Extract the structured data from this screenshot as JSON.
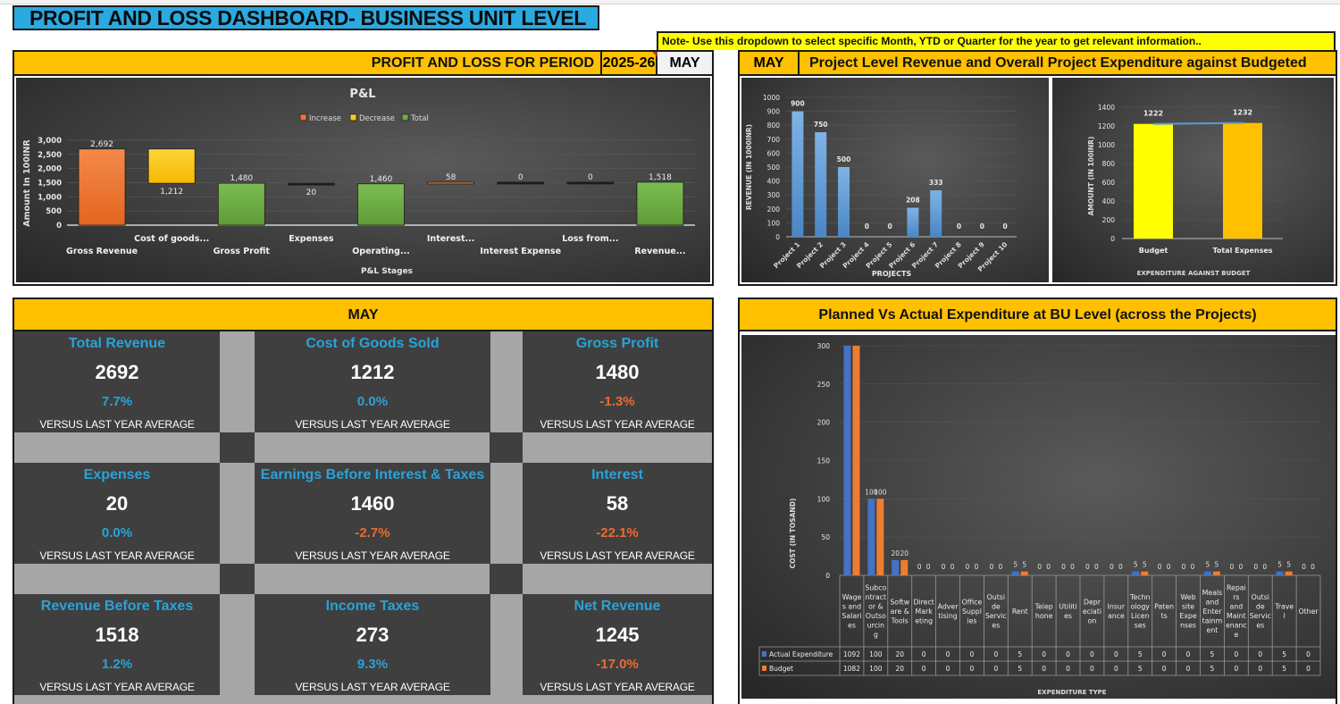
{
  "title": "PROFIT AND LOSS DASHBOARD- BUSINESS UNIT LEVEL",
  "note": "Note- Use this dropdown to select specific Month, YTD or Quarter for the year to get relevant information..",
  "pl_section": {
    "header_label": "PROFIT AND LOSS FOR PERIOD",
    "fiscal_year": "2025-26",
    "period_dropdown": "MAY"
  },
  "project_section": {
    "period": "MAY",
    "header_label": "Project Level Revenue and  Overall Project Expenditure against Budgeted"
  },
  "kpi_section": {
    "header": "MAY",
    "subtitle": "VERSUS LAST YEAR AVERAGE",
    "cards": [
      {
        "title": "Total Revenue",
        "value": "2692",
        "change": "7.7%",
        "trend": "pos"
      },
      {
        "title": "Cost of Goods Sold",
        "value": "1212",
        "change": "0.0%",
        "trend": "pos"
      },
      {
        "title": "Gross Profit",
        "value": "1480",
        "change": "-1.3%",
        "trend": "neg"
      },
      {
        "title": "Expenses",
        "value": "20",
        "change": "0.0%",
        "trend": "pos"
      },
      {
        "title": "Earnings Before Interest & Taxes",
        "value": "1460",
        "change": "-2.7%",
        "trend": "neg"
      },
      {
        "title": "Interest",
        "value": "58",
        "change": "-22.1%",
        "trend": "neg"
      },
      {
        "title": "Revenue Before Taxes",
        "value": "1518",
        "change": "1.2%",
        "trend": "pos"
      },
      {
        "title": "Income Taxes",
        "value": "273",
        "change": "9.3%",
        "trend": "pos"
      },
      {
        "title": "Net Revenue",
        "value": "1245",
        "change": "-17.0%",
        "trend": "neg"
      }
    ]
  },
  "expenditure_section": {
    "header": "Planned Vs Actual Expenditure at BU Level (across the Projects)"
  },
  "colors": {
    "increase": "#ed7d31",
    "decrease": "#ffc000",
    "total": "#70ad47",
    "project_bar": "#5b9bd5",
    "budget_bar": "#ffff00",
    "expense_bar": "#ffc000",
    "actual": "#4472c4",
    "budget": "#ed7d31",
    "positive": "#29a3d8",
    "negative": "#ee6a2f"
  },
  "chart_data": [
    {
      "id": "waterfall",
      "type": "bar",
      "subtype": "waterfall",
      "title": "P&L",
      "xlabel": "P&L Stages",
      "ylabel": "Amount In 100INR",
      "ylim": [
        0,
        3000
      ],
      "yticks": [
        "0",
        "500",
        "1,000",
        "1,500",
        "2,000",
        "2,500",
        "3,000"
      ],
      "ytick_values": [
        0,
        500,
        1000,
        1500,
        2000,
        2500,
        3000
      ],
      "legend": [
        "Increase",
        "Decrease",
        "Total"
      ],
      "legend_position": "top",
      "categories": [
        "Gross Revenue",
        "Cost of goods...",
        "Gross Profit",
        "Expenses",
        "Operating...",
        "Interest...",
        "Interest Expense",
        "Loss from...",
        "Revenue..."
      ],
      "values": [
        2692,
        -1212,
        1480,
        -20,
        1460,
        58,
        0,
        0,
        1518
      ],
      "kinds": [
        "increase",
        "decrease",
        "total",
        "decrease",
        "total",
        "increase",
        "decrease",
        "decrease",
        "total"
      ],
      "labels": [
        "2,692",
        "1,212",
        "1,480",
        "20",
        "1,460",
        "58",
        "0",
        "0",
        "1,518"
      ],
      "starts": [
        0,
        1480,
        0,
        1460,
        0,
        1460,
        1518,
        1518,
        0
      ],
      "ends": [
        2692,
        2692,
        1480,
        1480,
        1460,
        1518,
        1518,
        1518,
        1518
      ]
    },
    {
      "id": "project_revenue",
      "type": "bar",
      "xlabel": "PROJECTS",
      "ylabel": "REVENUE (IN 1000INR)",
      "ylim": [
        0,
        1000
      ],
      "ytick_values": [
        0,
        100,
        200,
        300,
        400,
        500,
        600,
        700,
        800,
        900,
        1000
      ],
      "categories": [
        "Project 1",
        "Project 2",
        "Project 3",
        "Project 4",
        "Project 5",
        "Project 6",
        "Project 7",
        "Project 8",
        "Project 9",
        "Project 10"
      ],
      "values": [
        900,
        750,
        500,
        0,
        0,
        208,
        333,
        0,
        0,
        0
      ]
    },
    {
      "id": "budget_vs_expense",
      "type": "bar",
      "xlabel": "EXPENDITURE AGAINST BUDGET",
      "ylabel": "AMOUNT (IN 100INR)",
      "ylim": [
        0,
        1400
      ],
      "ytick_values": [
        0,
        200,
        400,
        600,
        800,
        1000,
        1200,
        1400
      ],
      "categories": [
        "Budget",
        "Total Expenses"
      ],
      "values": [
        1222,
        1232
      ]
    },
    {
      "id": "planned_vs_actual",
      "type": "bar",
      "xlabel": "EXPENDITURE TYPE",
      "ylabel": "COST (IN TOSAND)",
      "ylim": [
        0,
        300
      ],
      "ytick_values": [
        0,
        50,
        100,
        150,
        200,
        250,
        300
      ],
      "categories": [
        "Wages and Salaries",
        "Subcontractor & Outsourcing",
        "Software & Tools",
        "Direct Marketing",
        "Advertising",
        "Office Supplies",
        "Outside Services",
        "Rent",
        "Telephone",
        "Utilities",
        "Depreciation",
        "Insurance",
        "Technology Licenses",
        "Patents",
        "Web site Expenses",
        "Meals and Entertainment",
        "Repairs and Maintenance",
        "Outside Services",
        "Travel",
        "Other"
      ],
      "category_wrapped": [
        [
          "Wage",
          "s and",
          "Salari",
          "es"
        ],
        [
          "Subco",
          "ntract",
          "or &",
          "Outso",
          "urcin",
          "g"
        ],
        [
          "Softw",
          "are &",
          "Tools"
        ],
        [
          "Direct",
          "Mark",
          "eting"
        ],
        [
          "Adver",
          "tising"
        ],
        [
          "Office",
          "Suppl",
          "ies"
        ],
        [
          "Outsi",
          "de",
          "Servic",
          "es"
        ],
        [
          "Rent"
        ],
        [
          "Telep",
          "hone"
        ],
        [
          "Utiliti",
          "es"
        ],
        [
          "Depr",
          "eciati",
          "on"
        ],
        [
          "Insur",
          "ance"
        ],
        [
          "Techn",
          "ology",
          "Licen",
          "ses"
        ],
        [
          "Paten",
          "ts"
        ],
        [
          "Web",
          "site",
          "Expe",
          "nses"
        ],
        [
          "Meals",
          "and",
          "Enter",
          "tainm",
          "ent"
        ],
        [
          "Repai",
          "rs",
          "and",
          "Maint",
          "enanc",
          "e"
        ],
        [
          "Outsi",
          "de",
          "Servic",
          "es"
        ],
        [
          "Trave",
          "l"
        ],
        [
          "Other"
        ]
      ],
      "series": [
        {
          "name": "Actual Expenditure",
          "values": [
            1092,
            100,
            20,
            0,
            0,
            0,
            0,
            5,
            0,
            0,
            0,
            0,
            5,
            0,
            0,
            5,
            0,
            0,
            5,
            0
          ]
        },
        {
          "name": "Budget",
          "values": [
            1082,
            100,
            20,
            0,
            0,
            0,
            0,
            5,
            0,
            0,
            0,
            0,
            5,
            0,
            0,
            5,
            0,
            0,
            5,
            0
          ]
        }
      ]
    }
  ]
}
